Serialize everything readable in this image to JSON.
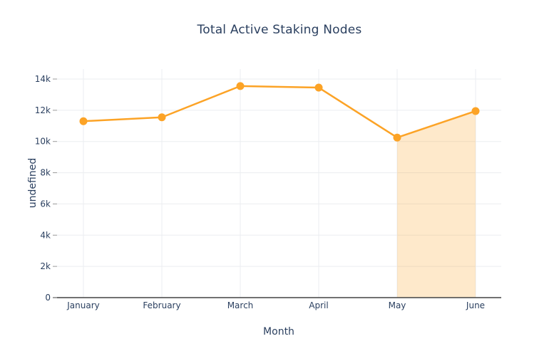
{
  "chart_data": {
    "type": "line",
    "title": "Total Active Staking Nodes",
    "xlabel": "Month",
    "ylabel": "undefined",
    "categories": [
      "January",
      "February",
      "March",
      "April",
      "May",
      "June"
    ],
    "series": [
      {
        "name": "Total Active Staking Nodes",
        "values": [
          11300,
          11550,
          13550,
          13450,
          10250,
          11950
        ]
      }
    ],
    "ylim": [
      0,
      14000
    ],
    "ytick_step": 2000,
    "ytick_labels": [
      "0",
      "2k",
      "4k",
      "6k",
      "8k",
      "10k",
      "12k",
      "14k"
    ],
    "grid": true,
    "legend": "none",
    "highlight_region": {
      "from_category": "May",
      "to_category": "June"
    },
    "colors": {
      "line": "#fca326",
      "marker": "#fca326",
      "region_fill": "rgba(252, 163, 38, 0.24)",
      "gridline": "#ebedf0",
      "axis_line": "#444444",
      "tick_mark": "#999999",
      "text": "#2a3f5f",
      "background": "#ffffff"
    }
  }
}
